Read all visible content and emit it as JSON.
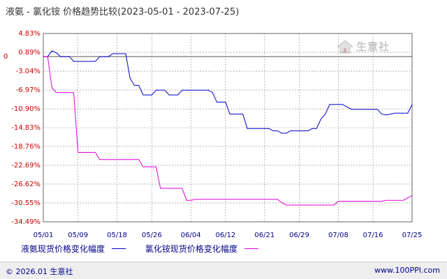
{
  "title": "液氨 - 氯化铵 价格趋势比较(2023-05-01 - 2023-07-25)",
  "watermark": "生意社",
  "footer": {
    "copyright": "© 2026.01 生意社",
    "url": "www.100PPI.com"
  },
  "colors": {
    "series1": "#0000cc",
    "series2": "#dd00dd",
    "grid": "#888888",
    "tick": "#cc0000",
    "xtick": "#000088"
  },
  "chart_data": {
    "type": "line",
    "ylim": [
      -34.49,
      4.83
    ],
    "ylabel_ticks": [
      "4.83%",
      "0.89%",
      "-3.04%",
      "-6.97%",
      "-10.90%",
      "-14.83%",
      "-18.76%",
      "-22.69%",
      "-26.62%",
      "-30.55%",
      "-34.49%"
    ],
    "ytick_values": [
      4.83,
      0.89,
      -3.04,
      -6.97,
      -10.9,
      -14.83,
      -18.76,
      -22.69,
      -26.62,
      -30.55,
      -34.49
    ],
    "xlim": [
      0,
      85
    ],
    "x_ticks": [
      {
        "day": 0,
        "label": "05/01"
      },
      {
        "day": 8,
        "label": "05/09"
      },
      {
        "day": 17,
        "label": "05/18"
      },
      {
        "day": 25,
        "label": "05/26"
      },
      {
        "day": 34,
        "label": "06/04"
      },
      {
        "day": 42,
        "label": "06/12"
      },
      {
        "day": 51,
        "label": "06/21"
      },
      {
        "day": 59,
        "label": "06/29"
      },
      {
        "day": 68,
        "label": "07/08"
      },
      {
        "day": 76,
        "label": "07/16"
      },
      {
        "day": 85,
        "label": "07/25"
      }
    ],
    "series": [
      {
        "name": "液氨现货价格变化幅度",
        "points": [
          [
            0,
            0
          ],
          [
            1,
            0
          ],
          [
            2,
            1.2
          ],
          [
            3,
            0.8
          ],
          [
            4,
            0
          ],
          [
            5,
            0
          ],
          [
            6,
            0
          ],
          [
            7,
            -1.0
          ],
          [
            8,
            -1.0
          ],
          [
            9,
            -1.0
          ],
          [
            10,
            -1.0
          ],
          [
            11,
            -1.0
          ],
          [
            12,
            -1.0
          ],
          [
            13,
            0
          ],
          [
            14,
            0
          ],
          [
            15,
            0
          ],
          [
            16,
            0.6
          ],
          [
            17,
            0.6
          ],
          [
            18,
            0.6
          ],
          [
            19,
            0.6
          ],
          [
            20,
            -4.5
          ],
          [
            21,
            -6.0
          ],
          [
            22,
            -6.0
          ],
          [
            23,
            -8.0
          ],
          [
            24,
            -8.0
          ],
          [
            25,
            -8.0
          ],
          [
            26,
            -7.0
          ],
          [
            27,
            -7.0
          ],
          [
            28,
            -7.0
          ],
          [
            29,
            -8.0
          ],
          [
            30,
            -8.0
          ],
          [
            31,
            -8.0
          ],
          [
            32,
            -7.0
          ],
          [
            33,
            -7.0
          ],
          [
            34,
            -7.0
          ],
          [
            35,
            -7.0
          ],
          [
            36,
            -7.0
          ],
          [
            37,
            -7.0
          ],
          [
            38,
            -7.0
          ],
          [
            39,
            -7.5
          ],
          [
            40,
            -9.5
          ],
          [
            41,
            -9.5
          ],
          [
            42,
            -9.5
          ],
          [
            43,
            -12.0
          ],
          [
            44,
            -12.0
          ],
          [
            45,
            -12.0
          ],
          [
            46,
            -12.0
          ],
          [
            47,
            -15.0
          ],
          [
            48,
            -15.0
          ],
          [
            49,
            -15.0
          ],
          [
            50,
            -15.0
          ],
          [
            51,
            -15.0
          ],
          [
            52,
            -15.0
          ],
          [
            53,
            -15.5
          ],
          [
            54,
            -15.5
          ],
          [
            55,
            -16.0
          ],
          [
            56,
            -16.0
          ],
          [
            57,
            -15.5
          ],
          [
            58,
            -15.5
          ],
          [
            59,
            -15.5
          ],
          [
            60,
            -15.5
          ],
          [
            61,
            -15.5
          ],
          [
            62,
            -15.0
          ],
          [
            63,
            -15.0
          ],
          [
            64,
            -13.0
          ],
          [
            65,
            -12.0
          ],
          [
            66,
            -10.0
          ],
          [
            67,
            -10.0
          ],
          [
            68,
            -10.0
          ],
          [
            69,
            -10.0
          ],
          [
            70,
            -10.5
          ],
          [
            71,
            -11.0
          ],
          [
            72,
            -11.0
          ],
          [
            73,
            -11.0
          ],
          [
            74,
            -11.0
          ],
          [
            75,
            -11.0
          ],
          [
            76,
            -11.0
          ],
          [
            77,
            -11.0
          ],
          [
            78,
            -12.0
          ],
          [
            79,
            -12.2
          ],
          [
            80,
            -12.0
          ],
          [
            81,
            -11.8
          ],
          [
            82,
            -11.8
          ],
          [
            83,
            -11.8
          ],
          [
            84,
            -11.8
          ],
          [
            85,
            -10.0
          ]
        ]
      },
      {
        "name": "氯化铵现货价格变化幅度",
        "points": [
          [
            0,
            0
          ],
          [
            1,
            0
          ],
          [
            2,
            -6.5
          ],
          [
            3,
            -7.5
          ],
          [
            4,
            -7.5
          ],
          [
            5,
            -7.5
          ],
          [
            6,
            -7.5
          ],
          [
            7,
            -7.5
          ],
          [
            8,
            -20.0
          ],
          [
            9,
            -20.0
          ],
          [
            10,
            -20.0
          ],
          [
            11,
            -20.0
          ],
          [
            12,
            -20.0
          ],
          [
            13,
            -21.5
          ],
          [
            14,
            -21.5
          ],
          [
            15,
            -21.5
          ],
          [
            16,
            -21.5
          ],
          [
            17,
            -21.5
          ],
          [
            18,
            -21.5
          ],
          [
            19,
            -21.5
          ],
          [
            20,
            -21.5
          ],
          [
            21,
            -21.5
          ],
          [
            22,
            -21.5
          ],
          [
            23,
            -23.0
          ],
          [
            24,
            -23.0
          ],
          [
            25,
            -23.0
          ],
          [
            26,
            -23.0
          ],
          [
            27,
            -27.5
          ],
          [
            28,
            -27.5
          ],
          [
            29,
            -27.5
          ],
          [
            30,
            -27.5
          ],
          [
            31,
            -27.5
          ],
          [
            32,
            -27.5
          ],
          [
            33,
            -30.0
          ],
          [
            34,
            -30.0
          ],
          [
            35,
            -29.8
          ],
          [
            36,
            -29.8
          ],
          [
            37,
            -29.8
          ],
          [
            38,
            -29.8
          ],
          [
            39,
            -29.8
          ],
          [
            40,
            -29.8
          ],
          [
            41,
            -29.8
          ],
          [
            42,
            -29.8
          ],
          [
            43,
            -29.8
          ],
          [
            44,
            -29.8
          ],
          [
            45,
            -29.8
          ],
          [
            46,
            -29.8
          ],
          [
            47,
            -29.8
          ],
          [
            48,
            -29.8
          ],
          [
            49,
            -29.8
          ],
          [
            50,
            -29.8
          ],
          [
            51,
            -29.8
          ],
          [
            52,
            -29.8
          ],
          [
            53,
            -29.8
          ],
          [
            54,
            -29.8
          ],
          [
            55,
            -30.5
          ],
          [
            56,
            -31.0
          ],
          [
            57,
            -31.0
          ],
          [
            58,
            -31.0
          ],
          [
            59,
            -31.0
          ],
          [
            60,
            -31.0
          ],
          [
            61,
            -31.0
          ],
          [
            62,
            -31.0
          ],
          [
            63,
            -31.0
          ],
          [
            64,
            -31.0
          ],
          [
            65,
            -31.0
          ],
          [
            66,
            -31.0
          ],
          [
            67,
            -31.0
          ],
          [
            68,
            -30.2
          ],
          [
            69,
            -30.2
          ],
          [
            70,
            -30.2
          ],
          [
            71,
            -30.2
          ],
          [
            72,
            -30.2
          ],
          [
            73,
            -30.2
          ],
          [
            74,
            -30.2
          ],
          [
            75,
            -30.2
          ],
          [
            76,
            -30.2
          ],
          [
            77,
            -30.2
          ],
          [
            78,
            -30.2
          ],
          [
            79,
            -30.0
          ],
          [
            80,
            -30.0
          ],
          [
            81,
            -30.0
          ],
          [
            82,
            -30.0
          ],
          [
            83,
            -30.0
          ],
          [
            84,
            -29.5
          ],
          [
            85,
            -29.0
          ]
        ]
      }
    ],
    "grid": true,
    "legend_position": "bottom"
  }
}
